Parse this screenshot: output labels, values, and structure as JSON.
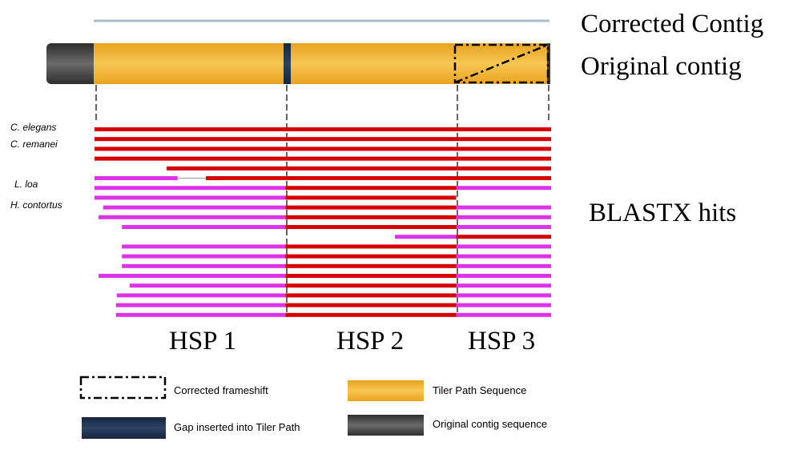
{
  "labels": {
    "corrected_contig": "Corrected Contig",
    "original_contig": "Original contig",
    "blastx_hits": "BLASTX hits"
  },
  "species": [
    "C. elegans",
    "C. remanei",
    "L. loa",
    "H. contortus"
  ],
  "hsps": [
    "HSP 1",
    "HSP 2",
    "HSP 3"
  ],
  "legend": {
    "frameshift": "Corrected frameshift",
    "gap": "Gap inserted into Tiler Path",
    "tiler": "Tiler Path Sequence",
    "original": "Original contig sequence"
  },
  "colors": {
    "corrected_line": "#a9bfcc",
    "tiler_path": "#f2b22e",
    "tiler_path_light": "#f7ca5a",
    "original_contig": "#4a4a4a",
    "gap": "#1f3354",
    "hit_red": "#d60000",
    "hit_magenta": "#dd33e8",
    "hit_connector": "#b0b0b0",
    "divider": "#000000"
  },
  "hits": [
    {
      "segments": [
        {
          "from": 0.0,
          "to": 1.0,
          "color": "red"
        }
      ]
    },
    {
      "segments": [
        {
          "from": 0.0,
          "to": 1.0,
          "color": "red"
        }
      ]
    },
    {
      "segments": [
        {
          "from": 0.0,
          "to": 1.0,
          "color": "red"
        }
      ]
    },
    {
      "segments": [
        {
          "from": 0.0,
          "to": 1.0,
          "color": "red"
        }
      ]
    },
    {
      "segments": [
        {
          "from": 0.158,
          "to": 1.0,
          "color": "red"
        }
      ]
    },
    {
      "segments": [
        {
          "from": 0.0,
          "to": 0.182,
          "color": "magenta"
        },
        {
          "from": 0.182,
          "to": 0.244,
          "color": "connector"
        },
        {
          "from": 0.244,
          "to": 1.0,
          "color": "red"
        }
      ]
    },
    {
      "segments": [
        {
          "from": 0.0,
          "to": 0.418,
          "color": "magenta"
        },
        {
          "from": 0.418,
          "to": 0.792,
          "color": "red"
        },
        {
          "from": 0.792,
          "to": 1.0,
          "color": "magenta"
        }
      ]
    },
    {
      "segments": [
        {
          "from": 0.0,
          "to": 0.418,
          "color": "magenta"
        },
        {
          "from": 0.418,
          "to": 0.792,
          "color": "red"
        }
      ]
    },
    {
      "segments": [
        {
          "from": 0.019,
          "to": 0.418,
          "color": "magenta"
        },
        {
          "from": 0.418,
          "to": 0.792,
          "color": "red"
        },
        {
          "from": 0.792,
          "to": 1.0,
          "color": "magenta"
        }
      ]
    },
    {
      "segments": [
        {
          "from": 0.009,
          "to": 0.418,
          "color": "magenta"
        },
        {
          "from": 0.418,
          "to": 0.792,
          "color": "red"
        },
        {
          "from": 0.792,
          "to": 1.0,
          "color": "magenta"
        }
      ]
    },
    {
      "segments": [
        {
          "from": 0.06,
          "to": 0.418,
          "color": "magenta"
        },
        {
          "from": 0.418,
          "to": 0.792,
          "color": "red"
        },
        {
          "from": 0.792,
          "to": 1.0,
          "color": "magenta"
        }
      ]
    },
    {
      "segments": [
        {
          "from": 0.658,
          "to": 0.792,
          "color": "magenta"
        },
        {
          "from": 0.792,
          "to": 1.0,
          "color": "red"
        }
      ]
    },
    {
      "segments": [
        {
          "from": 0.06,
          "to": 0.418,
          "color": "magenta"
        },
        {
          "from": 0.418,
          "to": 0.792,
          "color": "red"
        },
        {
          "from": 0.792,
          "to": 1.0,
          "color": "magenta"
        }
      ]
    },
    {
      "segments": [
        {
          "from": 0.06,
          "to": 0.418,
          "color": "magenta"
        },
        {
          "from": 0.418,
          "to": 0.792,
          "color": "red"
        },
        {
          "from": 0.792,
          "to": 1.0,
          "color": "magenta"
        }
      ]
    },
    {
      "segments": [
        {
          "from": 0.06,
          "to": 0.418,
          "color": "magenta"
        },
        {
          "from": 0.418,
          "to": 0.792,
          "color": "red"
        },
        {
          "from": 0.792,
          "to": 1.0,
          "color": "magenta"
        }
      ]
    },
    {
      "segments": [
        {
          "from": 0.009,
          "to": 0.418,
          "color": "magenta"
        },
        {
          "from": 0.418,
          "to": 0.792,
          "color": "red"
        },
        {
          "from": 0.792,
          "to": 1.0,
          "color": "magenta"
        }
      ]
    },
    {
      "segments": [
        {
          "from": 0.077,
          "to": 0.418,
          "color": "magenta"
        },
        {
          "from": 0.418,
          "to": 0.792,
          "color": "red"
        },
        {
          "from": 0.792,
          "to": 1.0,
          "color": "magenta"
        }
      ]
    },
    {
      "segments": [
        {
          "from": 0.049,
          "to": 0.418,
          "color": "magenta"
        },
        {
          "from": 0.418,
          "to": 0.792,
          "color": "red"
        },
        {
          "from": 0.792,
          "to": 1.0,
          "color": "magenta"
        }
      ]
    },
    {
      "segments": [
        {
          "from": 0.047,
          "to": 0.418,
          "color": "magenta"
        },
        {
          "from": 0.418,
          "to": 0.792,
          "color": "red"
        },
        {
          "from": 0.792,
          "to": 1.0,
          "color": "magenta"
        }
      ]
    },
    {
      "segments": [
        {
          "from": 0.047,
          "to": 0.418,
          "color": "magenta"
        },
        {
          "from": 0.418,
          "to": 0.792,
          "color": "red"
        },
        {
          "from": 0.792,
          "to": 1.0,
          "color": "magenta"
        }
      ]
    }
  ]
}
